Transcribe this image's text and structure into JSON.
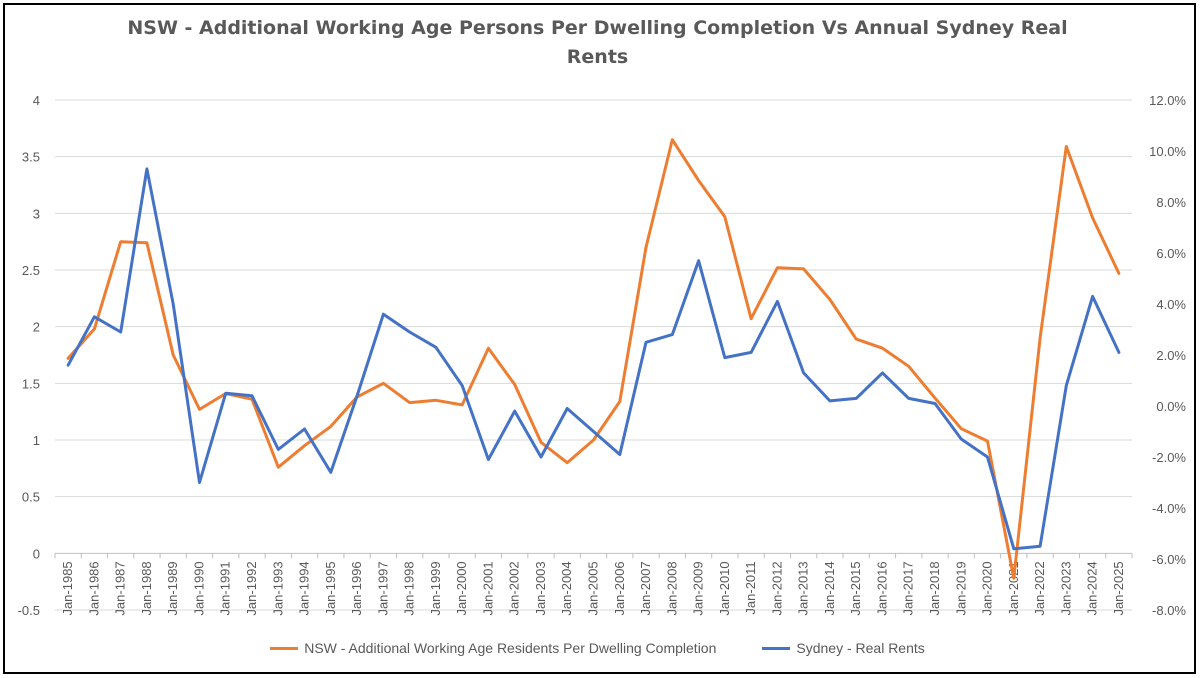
{
  "chart_data": {
    "type": "line",
    "title_line1": "NSW - Additional Working Age Persons Per Dwelling Completion Vs Annual Sydney Real",
    "title_line2": "Rents",
    "categories": [
      "Jan-1985",
      "Jan-1986",
      "Jan-1987",
      "Jan-1988",
      "Jan-1989",
      "Jan-1990",
      "Jan-1991",
      "Jan-1992",
      "Jan-1993",
      "Jan-1994",
      "Jan-1995",
      "Jan-1996",
      "Jan-1997",
      "Jan-1998",
      "Jan-1999",
      "Jan-2000",
      "Jan-2001",
      "Jan-2002",
      "Jan-2003",
      "Jan-2004",
      "Jan-2005",
      "Jan-2006",
      "Jan-2007",
      "Jan-2008",
      "Jan-2009",
      "Jan-2010",
      "Jan-2011",
      "Jan-2012",
      "Jan-2013",
      "Jan-2014",
      "Jan-2015",
      "Jan-2016",
      "Jan-2017",
      "Jan-2018",
      "Jan-2019",
      "Jan-2020",
      "Jan-2021",
      "Jan-2022",
      "Jan-2023",
      "Jan-2024",
      "Jan-2025"
    ],
    "y_left": {
      "min": -0.5,
      "max": 4,
      "ticks": [
        "-0.5",
        "0",
        "0.5",
        "1",
        "1.5",
        "2",
        "2.5",
        "3",
        "3.5",
        "4"
      ]
    },
    "y_right": {
      "min": -8,
      "max": 12,
      "ticks": [
        "-8.0%",
        "-6.0%",
        "-4.0%",
        "-2.0%",
        "0.0%",
        "2.0%",
        "4.0%",
        "6.0%",
        "8.0%",
        "10.0%",
        "12.0%"
      ]
    },
    "series": [
      {
        "name": "NSW - Additional Working Age Residents Per Dwelling Completion",
        "axis": "left",
        "color": "#ED7D31",
        "values": [
          1.72,
          1.98,
          2.75,
          2.74,
          1.75,
          1.27,
          1.41,
          1.36,
          0.76,
          0.95,
          1.12,
          1.38,
          1.5,
          1.33,
          1.35,
          1.31,
          1.81,
          1.49,
          0.98,
          0.8,
          1.0,
          1.34,
          2.7,
          3.65,
          3.29,
          2.97,
          2.07,
          2.52,
          2.51,
          2.24,
          1.89,
          1.81,
          1.65,
          1.37,
          1.1,
          0.99,
          -0.22,
          1.9,
          3.59,
          2.96,
          2.47
        ]
      },
      {
        "name": "Sydney - Real Rents",
        "axis": "right",
        "color": "#4472C4",
        "values": [
          1.6,
          3.5,
          2.9,
          9.3,
          4.0,
          -3.0,
          0.5,
          0.4,
          -1.7,
          -0.9,
          -2.6,
          0.4,
          3.6,
          2.9,
          2.3,
          0.8,
          -2.1,
          -0.2,
          -2.0,
          -0.1,
          -1.0,
          -1.9,
          2.5,
          2.8,
          5.7,
          1.9,
          2.1,
          4.1,
          1.3,
          0.2,
          0.3,
          1.3,
          0.3,
          0.1,
          -1.3,
          -2.0,
          -5.6,
          -5.5,
          0.8,
          4.3,
          2.1
        ]
      }
    ],
    "legend_position": "bottom",
    "grid": true
  }
}
